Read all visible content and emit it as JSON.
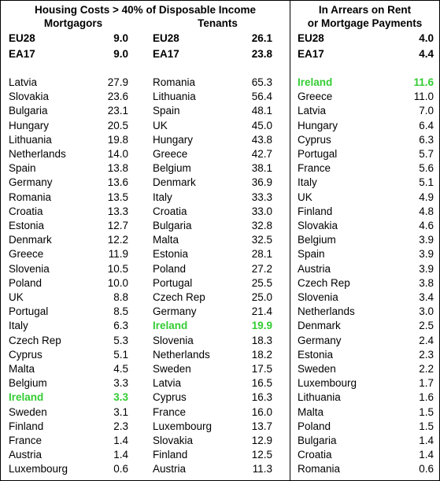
{
  "table": {
    "group_title": "Housing Costs > 40% of Disposable Income",
    "arrears_title": [
      "In Arrears on Rent",
      "or Mortgage Payments"
    ],
    "columns": [
      {
        "header": "Mortgagors",
        "aggregates": [
          {
            "name": "EU28",
            "value": "9.0"
          },
          {
            "name": "EA17",
            "value": "9.0"
          }
        ],
        "rows": [
          {
            "name": "Latvia",
            "value": "27.9"
          },
          {
            "name": "Slovakia",
            "value": "23.6"
          },
          {
            "name": "Bulgaria",
            "value": "23.1"
          },
          {
            "name": "Hungary",
            "value": "20.5"
          },
          {
            "name": "Lithuania",
            "value": "19.8"
          },
          {
            "name": "Netherlands",
            "value": "14.0"
          },
          {
            "name": "Spain",
            "value": "13.8"
          },
          {
            "name": "Germany",
            "value": "13.6"
          },
          {
            "name": "Romania",
            "value": "13.5"
          },
          {
            "name": "Croatia",
            "value": "13.3"
          },
          {
            "name": "Estonia",
            "value": "12.7"
          },
          {
            "name": "Denmark",
            "value": "12.2"
          },
          {
            "name": "Greece",
            "value": "11.9"
          },
          {
            "name": "Slovenia",
            "value": "10.5"
          },
          {
            "name": "Poland",
            "value": "10.0"
          },
          {
            "name": "UK",
            "value": "8.8"
          },
          {
            "name": "Portugal",
            "value": "8.5"
          },
          {
            "name": "Italy",
            "value": "6.3"
          },
          {
            "name": "Czech Rep",
            "value": "5.3"
          },
          {
            "name": "Cyprus",
            "value": "5.1"
          },
          {
            "name": "Malta",
            "value": "4.5"
          },
          {
            "name": "Belgium",
            "value": "3.3"
          },
          {
            "name": "Ireland",
            "value": "3.3",
            "highlight": true
          },
          {
            "name": "Sweden",
            "value": "3.1"
          },
          {
            "name": "Finland",
            "value": "2.3"
          },
          {
            "name": "France",
            "value": "1.4"
          },
          {
            "name": "Austria",
            "value": "1.4"
          },
          {
            "name": "Luxembourg",
            "value": "0.6"
          }
        ]
      },
      {
        "header": "Tenants",
        "aggregates": [
          {
            "name": "EU28",
            "value": "26.1"
          },
          {
            "name": "EA17",
            "value": "23.8"
          }
        ],
        "rows": [
          {
            "name": "Romania",
            "value": "65.3"
          },
          {
            "name": "Lithuania",
            "value": "56.4"
          },
          {
            "name": "Spain",
            "value": "48.1"
          },
          {
            "name": "UK",
            "value": "45.0"
          },
          {
            "name": "Hungary",
            "value": "43.8"
          },
          {
            "name": "Greece",
            "value": "42.7"
          },
          {
            "name": "Belgium",
            "value": "38.1"
          },
          {
            "name": "Denmark",
            "value": "36.9"
          },
          {
            "name": "Italy",
            "value": "33.3"
          },
          {
            "name": "Croatia",
            "value": "33.0"
          },
          {
            "name": "Bulgaria",
            "value": "32.8"
          },
          {
            "name": "Malta",
            "value": "32.5"
          },
          {
            "name": "Estonia",
            "value": "28.1"
          },
          {
            "name": "Poland",
            "value": "27.2"
          },
          {
            "name": "Portugal",
            "value": "25.5"
          },
          {
            "name": "Czech Rep",
            "value": "25.0"
          },
          {
            "name": "Germany",
            "value": "21.4"
          },
          {
            "name": "Ireland",
            "value": "19.9",
            "highlight": true
          },
          {
            "name": "Slovenia",
            "value": "18.3"
          },
          {
            "name": "Netherlands",
            "value": "18.2"
          },
          {
            "name": "Sweden",
            "value": "17.5"
          },
          {
            "name": "Latvia",
            "value": "16.5"
          },
          {
            "name": "Cyprus",
            "value": "16.3"
          },
          {
            "name": "France",
            "value": "16.0"
          },
          {
            "name": "Luxembourg",
            "value": "13.7"
          },
          {
            "name": "Slovakia",
            "value": "12.9"
          },
          {
            "name": "Finland",
            "value": "12.5"
          },
          {
            "name": "Austria",
            "value": "11.3"
          }
        ]
      },
      {
        "aggregates": [
          {
            "name": "EU28",
            "value": "4.0"
          },
          {
            "name": "EA17",
            "value": "4.4"
          }
        ],
        "rows": [
          {
            "name": "Ireland",
            "value": "11.6",
            "highlight": true
          },
          {
            "name": "Greece",
            "value": "11.0"
          },
          {
            "name": "Latvia",
            "value": "7.0"
          },
          {
            "name": "Hungary",
            "value": "6.4"
          },
          {
            "name": "Cyprus",
            "value": "6.3"
          },
          {
            "name": "Portugal",
            "value": "5.7"
          },
          {
            "name": "France",
            "value": "5.6"
          },
          {
            "name": "Italy",
            "value": "5.1"
          },
          {
            "name": "UK",
            "value": "4.9"
          },
          {
            "name": "Finland",
            "value": "4.8"
          },
          {
            "name": "Slovakia",
            "value": "4.6"
          },
          {
            "name": "Belgium",
            "value": "3.9"
          },
          {
            "name": "Spain",
            "value": "3.9"
          },
          {
            "name": "Austria",
            "value": "3.9"
          },
          {
            "name": "Czech Rep",
            "value": "3.8"
          },
          {
            "name": "Slovenia",
            "value": "3.4"
          },
          {
            "name": "Netherlands",
            "value": "3.0"
          },
          {
            "name": "Denmark",
            "value": "2.5"
          },
          {
            "name": "Germany",
            "value": "2.4"
          },
          {
            "name": "Estonia",
            "value": "2.3"
          },
          {
            "name": "Sweden",
            "value": "2.2"
          },
          {
            "name": "Luxembourg",
            "value": "1.7"
          },
          {
            "name": "Lithuania",
            "value": "1.6"
          },
          {
            "name": "Malta",
            "value": "1.5"
          },
          {
            "name": "Poland",
            "value": "1.5"
          },
          {
            "name": "Bulgaria",
            "value": "1.4"
          },
          {
            "name": "Croatia",
            "value": "1.4"
          },
          {
            "name": "Romania",
            "value": "0.6"
          }
        ]
      }
    ]
  }
}
